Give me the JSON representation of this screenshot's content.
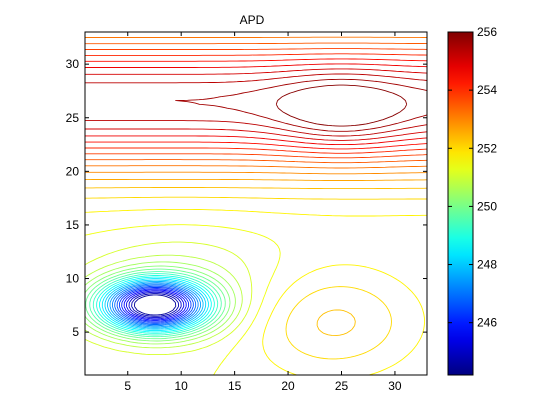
{
  "chart_data": {
    "type": "contour",
    "title": "APD",
    "xlabel": "",
    "ylabel": "",
    "xlim": [
      1,
      33
    ],
    "ylim": [
      1,
      33
    ],
    "x_ticks": [
      5,
      10,
      15,
      20,
      25,
      30
    ],
    "y_ticks": [
      5,
      10,
      15,
      20,
      25,
      30
    ],
    "colorbar": {
      "colormap": "jet",
      "range": [
        244.2,
        256
      ],
      "ticks": [
        246,
        248,
        250,
        252,
        254,
        256
      ]
    },
    "features": {
      "minimum": {
        "x": 7.5,
        "y": 7.5,
        "value": 244.3
      },
      "maximum_ridge_y": 26.5,
      "high_lobe_center": {
        "x": 25,
        "y": 25.5
      }
    },
    "levels": {
      "start": 244.5,
      "end": 255.9,
      "step": 0.3
    },
    "grid": false,
    "legend": "none"
  },
  "colors": {
    "jet": [
      "#00008f",
      "#0000ff",
      "#00ffff",
      "#ffff00",
      "#ff0000",
      "#800000"
    ]
  }
}
